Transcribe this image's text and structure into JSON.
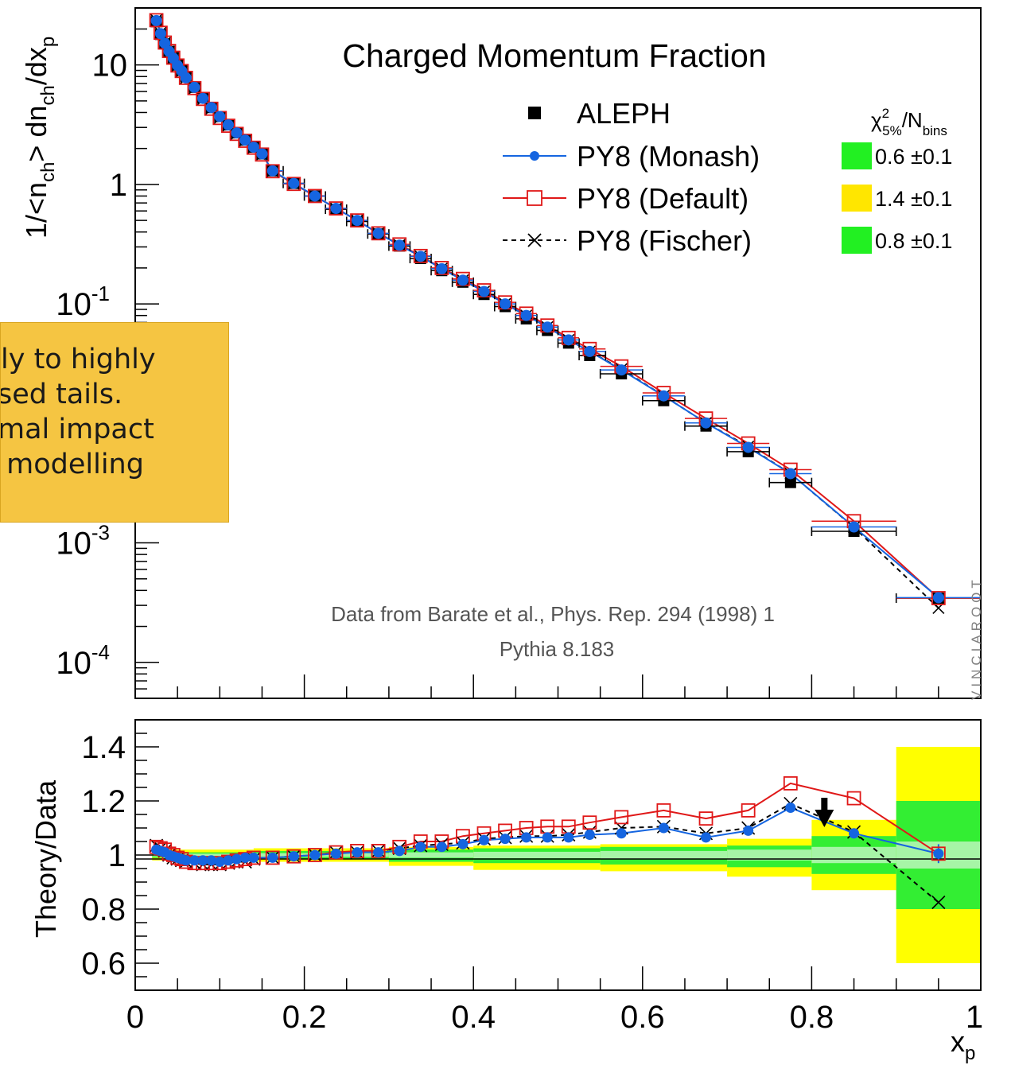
{
  "chart_data": [
    {
      "type": "scatter",
      "panel": "upper",
      "title": "Charged Momentum Fraction",
      "ylabel": "1/<n_ch> dn_ch/dx_p",
      "yscale": "log",
      "xlim": [
        0,
        1
      ],
      "ylim": [
        5e-05,
        30
      ],
      "y_ticks": [
        {
          "value": 10,
          "label": "10"
        },
        {
          "value": 1,
          "label": "1"
        },
        {
          "value": 0.1,
          "label": "10",
          "sup": "-1"
        },
        {
          "value": 0.01,
          "label": "",
          "sup": ""
        },
        {
          "value": 0.001,
          "label": "10",
          "sup": "-3"
        },
        {
          "value": 0.0001,
          "label": "10",
          "sup": "-4"
        }
      ],
      "legend": {
        "placement": "top-right",
        "header_base": "χ",
        "header_sup": "2",
        "header_sub": "5%",
        "header_rest": "/N",
        "header_rest_sub": "bins",
        "entries": [
          {
            "name": "ALEPH",
            "marker": "square-filled",
            "color": "#000000",
            "chi2": ""
          },
          {
            "name": "PY8 (Monash)",
            "marker": "circle",
            "color": "#1565e0",
            "chi2": "0.6 ±0.1",
            "chi2_color": "#22f022"
          },
          {
            "name": "PY8 (Default)",
            "marker": "square-open",
            "color": "#e01818",
            "chi2": "1.4 ±0.1",
            "chi2_color": "#ffe600"
          },
          {
            "name": "PY8 (Fischer)",
            "marker": "cross",
            "color": "#000000",
            "dashed": true,
            "chi2": "0.8 ±0.1",
            "chi2_color": "#22f022"
          }
        ]
      },
      "annotations": [
        "Data from Barate et al., Phys. Rep. 294 (1998) 1",
        "Pythia 8.183"
      ],
      "x": [
        0.025,
        0.03,
        0.035,
        0.04,
        0.045,
        0.05,
        0.055,
        0.06,
        0.07,
        0.08,
        0.09,
        0.1,
        0.11,
        0.12,
        0.13,
        0.14,
        0.15,
        0.1625,
        0.1875,
        0.2125,
        0.2375,
        0.2625,
        0.2875,
        0.3125,
        0.3375,
        0.3625,
        0.3875,
        0.4125,
        0.4375,
        0.4625,
        0.4875,
        0.5125,
        0.5375,
        0.575,
        0.625,
        0.675,
        0.725,
        0.775,
        0.85,
        0.95
      ],
      "series": [
        {
          "name": "ALEPH",
          "values": [
            23,
            18,
            15,
            13,
            11.5,
            10,
            9,
            8,
            6.5,
            5.3,
            4.4,
            3.7,
            3.15,
            2.7,
            2.35,
            2.05,
            1.8,
            1.3,
            1.02,
            0.8,
            0.62,
            0.49,
            0.385,
            0.305,
            0.24,
            0.19,
            0.152,
            0.12,
            0.095,
            0.075,
            0.06,
            0.047,
            0.037,
            0.026,
            0.0155,
            0.0095,
            0.0058,
            0.0032,
            0.00125,
            0.000345
          ]
        },
        {
          "name": "PY8 (Monash)",
          "values": [
            23.5,
            18.3,
            15.2,
            13,
            11.4,
            9.9,
            8.9,
            7.8,
            6.5,
            5.25,
            4.4,
            3.7,
            3.15,
            2.7,
            2.35,
            2.05,
            1.8,
            1.3,
            1.02,
            0.8,
            0.63,
            0.5,
            0.39,
            0.31,
            0.25,
            0.197,
            0.158,
            0.127,
            0.1,
            0.08,
            0.064,
            0.05,
            0.04,
            0.028,
            0.017,
            0.0101,
            0.0063,
            0.0038,
            0.00136,
            0.000348
          ]
        },
        {
          "name": "PY8 (Default)",
          "values": [
            23.7,
            18.6,
            15.4,
            13.1,
            11.5,
            9.9,
            8.9,
            7.8,
            6.4,
            5.2,
            4.3,
            3.6,
            3.1,
            2.65,
            2.32,
            2.03,
            1.78,
            1.29,
            1.01,
            0.8,
            0.63,
            0.5,
            0.39,
            0.315,
            0.252,
            0.2,
            0.162,
            0.13,
            0.103,
            0.083,
            0.066,
            0.052,
            0.042,
            0.03,
            0.018,
            0.011,
            0.0068,
            0.0041,
            0.00152,
            0.000345
          ]
        },
        {
          "name": "PY8 (Fischer)",
          "values": [
            23.8,
            18.6,
            15.3,
            13,
            11.4,
            9.85,
            8.85,
            7.75,
            6.35,
            5.15,
            4.3,
            3.6,
            3.1,
            2.65,
            2.33,
            2.03,
            1.78,
            1.29,
            1.01,
            0.8,
            0.63,
            0.5,
            0.39,
            0.312,
            0.25,
            0.198,
            0.158,
            0.127,
            0.1,
            0.08,
            0.064,
            0.05,
            0.04,
            0.0285,
            0.017,
            0.0101,
            0.0064,
            0.0038,
            0.00135,
            0.000285
          ]
        }
      ]
    },
    {
      "type": "line",
      "panel": "lower",
      "ylabel": "Theory/Data",
      "xlabel_base": "x",
      "xlabel_sub": "p",
      "xlim": [
        0,
        1
      ],
      "ylim": [
        0.5,
        1.5
      ],
      "y_ticks": [
        "0.6",
        "0.8",
        "1",
        "1.2",
        "1.4"
      ],
      "x_ticks": [
        "0",
        "0.2",
        "0.4",
        "0.6",
        "0.8",
        "1"
      ],
      "arrow_x": 0.815,
      "bands": [
        {
          "x0": 0.02,
          "x1": 0.14,
          "yellow": [
            0.98,
            1.02
          ],
          "green": [
            0.99,
            1.01
          ],
          "light": [
            0.995,
            1.005
          ]
        },
        {
          "x0": 0.14,
          "x1": 0.3,
          "yellow": [
            0.975,
            1.025
          ],
          "green": [
            0.985,
            1.015
          ],
          "light": [
            0.993,
            1.007
          ]
        },
        {
          "x0": 0.3,
          "x1": 0.4,
          "yellow": [
            0.96,
            1.03
          ],
          "green": [
            0.975,
            1.02
          ],
          "light": [
            0.99,
            1.01
          ]
        },
        {
          "x0": 0.4,
          "x1": 0.55,
          "yellow": [
            0.945,
            1.035
          ],
          "green": [
            0.97,
            1.025
          ],
          "light": [
            0.988,
            1.012
          ]
        },
        {
          "x0": 0.55,
          "x1": 0.7,
          "yellow": [
            0.94,
            1.04
          ],
          "green": [
            0.965,
            1.03
          ],
          "light": [
            0.985,
            1.015
          ]
        },
        {
          "x0": 0.7,
          "x1": 0.8,
          "yellow": [
            0.92,
            1.06
          ],
          "green": [
            0.955,
            1.035
          ],
          "light": [
            0.98,
            1.02
          ]
        },
        {
          "x0": 0.8,
          "x1": 0.9,
          "yellow": [
            0.87,
            1.13
          ],
          "green": [
            0.93,
            1.07
          ],
          "light": [
            0.97,
            1.03
          ]
        },
        {
          "x0": 0.9,
          "x1": 1.0,
          "yellow": [
            0.6,
            1.4
          ],
          "green": [
            0.8,
            1.2
          ],
          "light": [
            0.95,
            1.05
          ]
        }
      ],
      "x": [
        0.025,
        0.03,
        0.035,
        0.04,
        0.045,
        0.05,
        0.055,
        0.06,
        0.07,
        0.08,
        0.09,
        0.1,
        0.11,
        0.12,
        0.13,
        0.14,
        0.1625,
        0.1875,
        0.2125,
        0.2375,
        0.2625,
        0.2875,
        0.3125,
        0.3375,
        0.3625,
        0.3875,
        0.4125,
        0.4375,
        0.4625,
        0.4875,
        0.5125,
        0.5375,
        0.575,
        0.625,
        0.675,
        0.725,
        0.775,
        0.85,
        0.95
      ],
      "series": [
        {
          "name": "PY8 (Monash)",
          "values": [
            1.02,
            1.015,
            1.01,
            1.0,
            0.995,
            0.99,
            0.985,
            0.98,
            0.98,
            0.98,
            0.98,
            0.975,
            0.98,
            0.985,
            0.99,
            0.99,
            0.99,
            0.995,
            1.0,
            1.005,
            1.01,
            1.01,
            1.015,
            1.03,
            1.03,
            1.04,
            1.055,
            1.06,
            1.065,
            1.065,
            1.065,
            1.075,
            1.08,
            1.1,
            1.065,
            1.09,
            1.175,
            1.08,
            1.005
          ]
        },
        {
          "name": "PY8 (Default)",
          "values": [
            1.03,
            1.025,
            1.02,
            1.005,
            1.0,
            0.99,
            0.985,
            0.975,
            0.97,
            0.97,
            0.97,
            0.97,
            0.975,
            0.98,
            0.985,
            0.99,
            0.99,
            0.995,
            1.0,
            1.01,
            1.015,
            1.015,
            1.03,
            1.05,
            1.05,
            1.07,
            1.08,
            1.09,
            1.1,
            1.105,
            1.105,
            1.12,
            1.14,
            1.165,
            1.135,
            1.165,
            1.265,
            1.21,
            1.005
          ]
        },
        {
          "name": "PY8 (Fischer)",
          "values": [
            1.035,
            1.025,
            1.015,
            1.0,
            0.99,
            0.985,
            0.98,
            0.975,
            0.97,
            0.965,
            0.965,
            0.965,
            0.97,
            0.975,
            0.975,
            0.985,
            0.99,
            0.995,
            1.0,
            1.01,
            1.01,
            1.015,
            1.025,
            1.035,
            1.04,
            1.045,
            1.06,
            1.065,
            1.07,
            1.07,
            1.075,
            1.085,
            1.1,
            1.105,
            1.08,
            1.1,
            1.19,
            1.085,
            0.825
          ]
        }
      ]
    }
  ],
  "overlay_note": {
    "lines": [
      "ly to highly",
      "sed tails.",
      "mal impact",
      " modelling"
    ]
  },
  "watermark": "VINCIAROOT"
}
